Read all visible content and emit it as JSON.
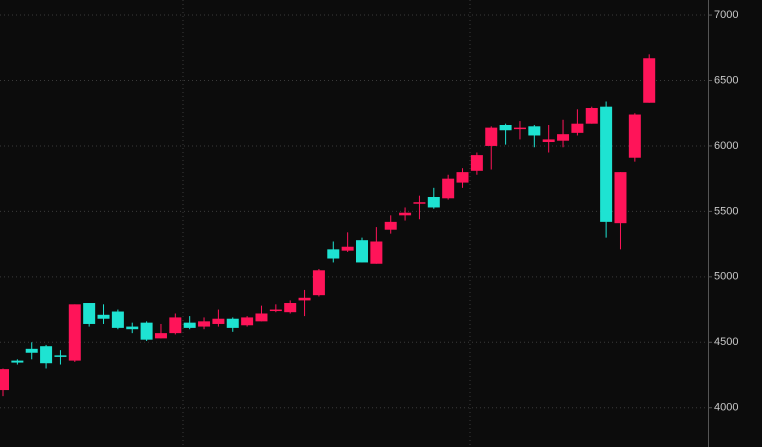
{
  "chart_data": {
    "type": "candlestick",
    "up_color": "#ff1459",
    "down_color": "#1ee3d2",
    "open": [
      4135,
      4360,
      4450,
      4470,
      4400,
      4360,
      4800,
      4710,
      4735,
      4620,
      4650,
      4530,
      4570,
      4650,
      4620,
      4640,
      4680,
      4630,
      4660,
      4740,
      4730,
      4820,
      4860,
      5210,
      5200,
      5280,
      5100,
      5360,
      5470,
      5560,
      5610,
      5600,
      5720,
      5810,
      6000,
      6160,
      6130,
      6150,
      6030,
      6040,
      6100,
      6170,
      6300,
      5410,
      5910,
      6330
    ],
    "high": [
      4300,
      4370,
      4500,
      4480,
      4440,
      4790,
      4800,
      4790,
      4750,
      4650,
      4660,
      4640,
      4720,
      4700,
      4690,
      4750,
      4690,
      4700,
      4780,
      4790,
      4820,
      4900,
      5060,
      5270,
      5340,
      5300,
      5380,
      5470,
      5530,
      5620,
      5680,
      5780,
      5830,
      5950,
      6150,
      6170,
      6190,
      6160,
      6160,
      6200,
      6280,
      6300,
      6340,
      5800,
      6250,
      6700
    ],
    "low": [
      4089,
      4330,
      4370,
      4300,
      4330,
      4350,
      4620,
      4640,
      4600,
      4570,
      4510,
      4530,
      4560,
      4600,
      4600,
      4620,
      4580,
      4620,
      4660,
      4730,
      4720,
      4700,
      4850,
      5110,
      5190,
      5110,
      5100,
      5330,
      5430,
      5440,
      5520,
      5590,
      5680,
      5780,
      5820,
      6010,
      6050,
      5990,
      5950,
      5990,
      6080,
      6170,
      5300,
      5210,
      5880,
      6330
    ],
    "close": [
      4295,
      4345,
      4420,
      4340,
      4390,
      4790,
      4640,
      4680,
      4610,
      4600,
      4520,
      4570,
      4690,
      4610,
      4660,
      4680,
      4610,
      4690,
      4720,
      4750,
      4800,
      4840,
      5050,
      5140,
      5230,
      5110,
      5270,
      5420,
      5490,
      5570,
      5530,
      5750,
      5800,
      5930,
      6140,
      6120,
      6140,
      6080,
      6050,
      6090,
      6170,
      6290,
      5420,
      5800,
      6240,
      6670
    ],
    "ylim": [
      3700,
      7115
    ],
    "yticks": [
      4000,
      4500,
      5000,
      5500,
      6000,
      6500,
      7000
    ],
    "grid": true
  }
}
